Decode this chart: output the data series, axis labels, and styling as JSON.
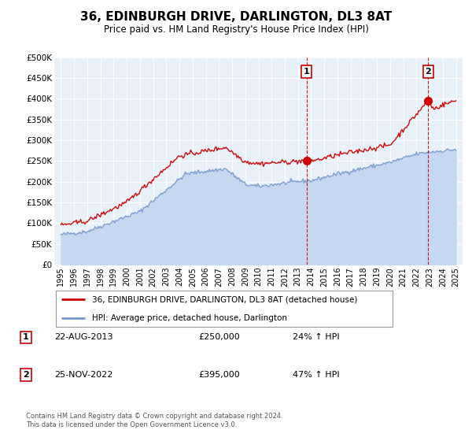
{
  "title": "36, EDINBURGH DRIVE, DARLINGTON, DL3 8AT",
  "subtitle": "Price paid vs. HM Land Registry's House Price Index (HPI)",
  "legend_line1": "36, EDINBURGH DRIVE, DARLINGTON, DL3 8AT (detached house)",
  "legend_line2": "HPI: Average price, detached house, Darlington",
  "annotation1_label": "1",
  "annotation1_date": "22-AUG-2013",
  "annotation1_price": "£250,000",
  "annotation1_hpi": "24% ↑ HPI",
  "annotation1_year": 2013.65,
  "annotation1_value": 250000,
  "annotation2_label": "2",
  "annotation2_date": "25-NOV-2022",
  "annotation2_price": "£395,000",
  "annotation2_hpi": "47% ↑ HPI",
  "annotation2_year": 2022.9,
  "annotation2_value": 395000,
  "footer": "Contains HM Land Registry data © Crown copyright and database right 2024.\nThis data is licensed under the Open Government Licence v3.0.",
  "hpi_color": "#7799cc",
  "price_color": "#cc0000",
  "fill_color": "#c5d8f0",
  "background_color": "#e8f0f8",
  "ylim": [
    0,
    500000
  ],
  "yticks": [
    0,
    50000,
    100000,
    150000,
    200000,
    250000,
    300000,
    350000,
    400000,
    450000,
    500000
  ],
  "xlim_start": 1994.5,
  "xlim_end": 2025.5
}
